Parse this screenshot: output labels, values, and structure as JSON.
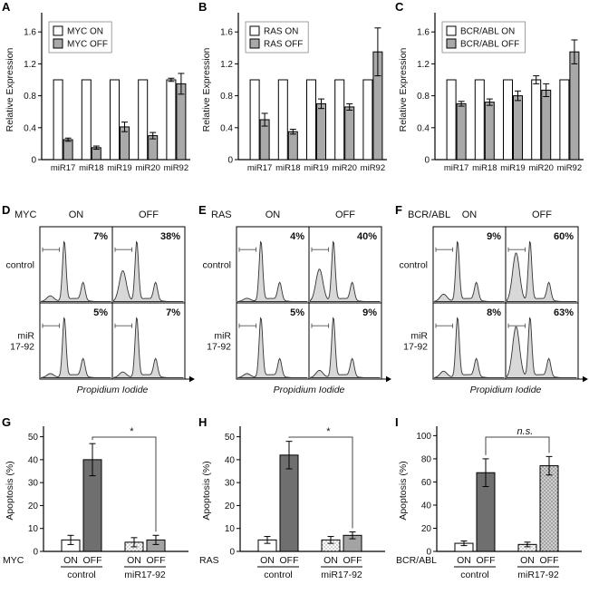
{
  "colors": {
    "on": "#ffffff",
    "off": "#a9a9a9",
    "dark": "#6f6f6f",
    "gray": "#a3a3a3",
    "hist_fill": "#d8d8d8",
    "axis": "#000000"
  },
  "chart_data": [
    {
      "id": "A",
      "label": "A",
      "type": "bar-paired",
      "legend": [
        "MYC ON",
        "MYC OFF"
      ],
      "ylabel": "Relative Expression",
      "yticks": [
        0,
        0.4,
        0.8,
        1.2,
        1.6
      ],
      "ylim": [
        0,
        1.75
      ],
      "categories": [
        "miR17",
        "miR18",
        "miR19",
        "miR20",
        "miR92"
      ],
      "series": [
        {
          "name": "MYC ON",
          "fill": "on",
          "values": [
            1.0,
            1.0,
            1.0,
            1.0,
            1.0
          ],
          "errors": [
            0,
            0,
            0,
            0,
            0.02
          ]
        },
        {
          "name": "MYC OFF",
          "fill": "off",
          "values": [
            0.25,
            0.15,
            0.41,
            0.3,
            0.95
          ],
          "errors": [
            0.02,
            0.02,
            0.06,
            0.04,
            0.13
          ]
        }
      ]
    },
    {
      "id": "B",
      "label": "B",
      "type": "bar-paired",
      "legend": [
        "RAS ON",
        "RAS OFF"
      ],
      "ylabel": "Relative Expression",
      "yticks": [
        0,
        0.4,
        0.8,
        1.2,
        1.6
      ],
      "ylim": [
        0,
        1.75
      ],
      "categories": [
        "miR17",
        "miR18",
        "miR19",
        "miR20",
        "miR92"
      ],
      "series": [
        {
          "name": "RAS ON",
          "fill": "on",
          "values": [
            1.0,
            1.0,
            1.0,
            1.0,
            1.0
          ],
          "errors": [
            0,
            0,
            0,
            0,
            0
          ]
        },
        {
          "name": "RAS OFF",
          "fill": "off",
          "values": [
            0.5,
            0.35,
            0.7,
            0.66,
            1.35
          ],
          "errors": [
            0.08,
            0.03,
            0.06,
            0.04,
            0.3
          ]
        }
      ]
    },
    {
      "id": "C",
      "label": "C",
      "type": "bar-paired",
      "legend": [
        "BCR/ABL ON",
        "BCR/ABL OFF"
      ],
      "ylabel": "Relative Expression",
      "yticks": [
        0,
        0.4,
        0.8,
        1.2,
        1.6
      ],
      "ylim": [
        0,
        1.75
      ],
      "categories": [
        "miR17",
        "miR18",
        "miR19",
        "miR20",
        "miR92"
      ],
      "series": [
        {
          "name": "BCR/ABL ON",
          "fill": "on",
          "values": [
            1.0,
            1.0,
            1.0,
            1.0,
            1.0
          ],
          "errors": [
            0,
            0,
            0,
            0.05,
            0
          ]
        },
        {
          "name": "BCR/ABL OFF",
          "fill": "off",
          "values": [
            0.7,
            0.72,
            0.8,
            0.87,
            1.35
          ],
          "errors": [
            0.03,
            0.04,
            0.06,
            0.08,
            0.15
          ]
        }
      ]
    },
    {
      "id": "D",
      "label": "D",
      "type": "flow-histogram-grid",
      "oncogene": "MYC",
      "col_headers": [
        "ON",
        "OFF"
      ],
      "row_labels": [
        [
          "control"
        ],
        [
          "miR",
          "17-92"
        ]
      ],
      "percentages": [
        [
          "7%",
          "38%"
        ],
        [
          "5%",
          "7%"
        ]
      ],
      "xlabel": "Propidium Iodide"
    },
    {
      "id": "E",
      "label": "E",
      "type": "flow-histogram-grid",
      "oncogene": "RAS",
      "col_headers": [
        "ON",
        "OFF"
      ],
      "row_labels": [
        [
          "control"
        ],
        [
          "miR",
          "17-92"
        ]
      ],
      "percentages": [
        [
          "4%",
          "40%"
        ],
        [
          "5%",
          "9%"
        ]
      ],
      "xlabel": "Propidium Iodide"
    },
    {
      "id": "F",
      "label": "F",
      "type": "flow-histogram-grid",
      "oncogene": "BCR/ABL",
      "col_headers": [
        "ON",
        "OFF"
      ],
      "row_labels": [
        [
          "control"
        ],
        [
          "miR",
          "17-92"
        ]
      ],
      "percentages": [
        [
          "9%",
          "60%"
        ],
        [
          "8%",
          "63%"
        ]
      ],
      "xlabel": "Propidium Iodide"
    },
    {
      "id": "G",
      "label": "G",
      "type": "bar-groups",
      "oncogene": "MYC",
      "ylabel": "Apoptosis (%)",
      "yticks": [
        0,
        10,
        20,
        30,
        40,
        50
      ],
      "ylim": [
        0,
        53
      ],
      "groups": [
        "control",
        "miR17-92"
      ],
      "bar_labels": [
        "ON",
        "OFF",
        "ON",
        "OFF"
      ],
      "values": [
        5,
        40,
        4,
        5
      ],
      "errors": [
        2,
        7,
        2,
        2
      ],
      "fills": [
        "on",
        "dark",
        "dotted",
        "gray"
      ],
      "significance": "*"
    },
    {
      "id": "H",
      "label": "H",
      "type": "bar-groups",
      "oncogene": "RAS",
      "ylabel": "Apoptosis (%)",
      "yticks": [
        0,
        10,
        20,
        30,
        40,
        50
      ],
      "ylim": [
        0,
        53
      ],
      "groups": [
        "control",
        "miR17-92"
      ],
      "bar_labels": [
        "ON",
        "OFF",
        "ON",
        "OFF"
      ],
      "values": [
        5,
        42,
        5,
        7
      ],
      "errors": [
        1.5,
        6,
        1.5,
        1.5
      ],
      "fills": [
        "on",
        "dark",
        "dotted",
        "gray"
      ],
      "significance": "*"
    },
    {
      "id": "I",
      "label": "I",
      "type": "bar-groups",
      "oncogene": "BCR/ABL",
      "ylabel": "Apoptosis (%)",
      "yticks": [
        0,
        20,
        40,
        60,
        80,
        100
      ],
      "ylim": [
        0,
        105
      ],
      "groups": [
        "control",
        "miR17-92"
      ],
      "bar_labels": [
        "ON",
        "OFF",
        "ON",
        "OFF"
      ],
      "values": [
        7,
        68,
        6,
        74
      ],
      "errors": [
        2,
        12,
        2,
        8
      ],
      "fills": [
        "on",
        "dark",
        "dotted",
        "dotted-gray"
      ],
      "significance": "n.s."
    }
  ]
}
